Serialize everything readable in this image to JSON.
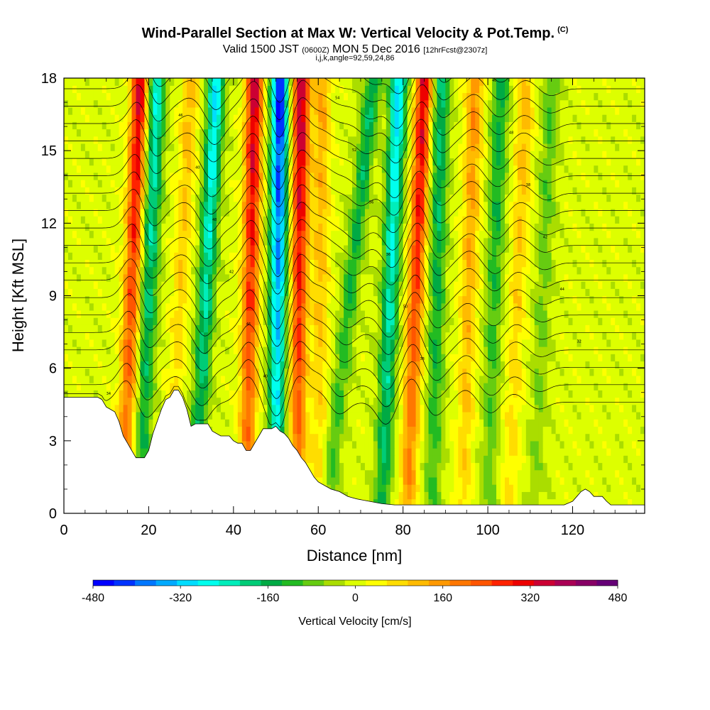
{
  "header": {
    "title": "Wind-Parallel Section at Max W: Vertical Velocity & Pot.Temp.",
    "copyright": "(C)",
    "valid_main": "Valid 1500 JST",
    "valid_utc": "(0600Z)",
    "valid_date": "MON 5 Dec 2016",
    "forecast": "[12hrFcst@2307z]",
    "params": "i,j,k,angle=92,59,24,86"
  },
  "colorbar": {
    "label": "Vertical Velocity [cm/s]",
    "ticks": [
      "-480",
      "-320",
      "-160",
      "0",
      "160",
      "320",
      "480"
    ],
    "colors": [
      "#0000ff",
      "#0033ff",
      "#0077ff",
      "#00aaff",
      "#00ddff",
      "#00ffee",
      "#00eebb",
      "#00cc77",
      "#00aa44",
      "#22bb22",
      "#66cc11",
      "#aadd00",
      "#ddff00",
      "#ffff00",
      "#ffdd00",
      "#ffbb00",
      "#ff9900",
      "#ff7700",
      "#ff5500",
      "#ff2200",
      "#ee0000",
      "#cc0033",
      "#aa0055",
      "#880066",
      "#660077"
    ]
  },
  "chart_data": {
    "type": "heatmap",
    "title": "Wind-Parallel Section at Max W: Vertical Velocity & Pot.Temp.",
    "xlabel": "Distance [nm]",
    "ylabel": "Height [Kft MSL]",
    "xlim": [
      0,
      137
    ],
    "ylim": [
      0,
      18
    ],
    "x_ticks": [
      "0",
      "20",
      "40",
      "60",
      "80",
      "100",
      "120"
    ],
    "y_ticks": [
      "0",
      "3",
      "6",
      "9",
      "12",
      "15",
      "18"
    ],
    "value_range": [
      -480,
      480
    ],
    "wave_bands": [
      {
        "x_top": 18,
        "x_bottom": 14,
        "w": 340
      },
      {
        "x_top": 22,
        "x_bottom": 18,
        "w": -260
      },
      {
        "x_top": 30,
        "x_bottom": 25,
        "w": 120
      },
      {
        "x_top": 36,
        "x_bottom": 31,
        "w": -300
      },
      {
        "x_top": 45,
        "x_bottom": 43,
        "w": 360
      },
      {
        "x_top": 51,
        "x_bottom": 50,
        "w": -470
      },
      {
        "x_top": 56,
        "x_bottom": 55,
        "w": 380
      },
      {
        "x_top": 61,
        "x_bottom": 60,
        "w": 140
      },
      {
        "x_top": 73,
        "x_bottom": 62,
        "w": -180
      },
      {
        "x_top": 79,
        "x_bottom": 75,
        "w": -320
      },
      {
        "x_top": 85,
        "x_bottom": 81,
        "w": 340
      },
      {
        "x_top": 89,
        "x_bottom": 87,
        "w": -200
      },
      {
        "x_top": 97,
        "x_bottom": 94,
        "w": 170
      },
      {
        "x_top": 103,
        "x_bottom": 100,
        "w": -160
      },
      {
        "x_top": 109,
        "x_bottom": 105,
        "w": 120
      },
      {
        "x_top": 115,
        "x_bottom": 111,
        "w": -100
      }
    ],
    "terrain": [
      [
        0,
        4.8
      ],
      [
        8,
        4.8
      ],
      [
        9,
        4.7
      ],
      [
        10,
        4.4
      ],
      [
        11,
        4.3
      ],
      [
        12,
        4.2
      ],
      [
        13,
        3.8
      ],
      [
        14,
        3.2
      ],
      [
        15,
        2.9
      ],
      [
        16,
        2.6
      ],
      [
        17,
        2.3
      ],
      [
        19,
        2.3
      ],
      [
        20,
        2.6
      ],
      [
        21,
        3.3
      ],
      [
        22,
        3.8
      ],
      [
        23,
        4.3
      ],
      [
        24,
        4.7
      ],
      [
        25,
        4.8
      ],
      [
        26,
        5.1
      ],
      [
        27,
        5.1
      ],
      [
        28,
        4.8
      ],
      [
        29,
        4.3
      ],
      [
        30,
        3.6
      ],
      [
        31,
        3.7
      ],
      [
        34,
        3.7
      ],
      [
        35,
        3.4
      ],
      [
        37,
        3.2
      ],
      [
        39,
        3.2
      ],
      [
        40,
        3.0
      ],
      [
        41,
        2.9
      ],
      [
        42,
        2.9
      ],
      [
        43,
        2.6
      ],
      [
        44,
        2.6
      ],
      [
        45,
        2.9
      ],
      [
        46,
        3.2
      ],
      [
        47,
        3.5
      ],
      [
        49,
        3.5
      ],
      [
        50,
        3.6
      ],
      [
        51,
        3.4
      ],
      [
        52,
        3.3
      ],
      [
        53,
        3.1
      ],
      [
        54,
        2.8
      ],
      [
        55,
        2.6
      ],
      [
        56,
        2.3
      ],
      [
        57,
        2.1
      ],
      [
        58,
        1.8
      ],
      [
        59,
        1.5
      ],
      [
        60,
        1.3
      ],
      [
        61,
        1.2
      ],
      [
        63,
        1.0
      ],
      [
        65,
        0.9
      ],
      [
        67,
        0.7
      ],
      [
        69,
        0.6
      ],
      [
        72,
        0.5
      ],
      [
        75,
        0.4
      ],
      [
        78,
        0.35
      ],
      [
        81,
        0.35
      ],
      [
        84,
        0.35
      ],
      [
        90,
        0.35
      ],
      [
        100,
        0.35
      ],
      [
        110,
        0.35
      ],
      [
        118,
        0.35
      ],
      [
        120,
        0.5
      ],
      [
        121,
        0.7
      ],
      [
        122,
        0.9
      ],
      [
        123,
        1.0
      ],
      [
        124,
        0.9
      ],
      [
        125,
        0.7
      ],
      [
        127,
        0.7
      ],
      [
        128,
        0.5
      ],
      [
        129,
        0.35
      ],
      [
        137,
        0.35
      ]
    ],
    "theta_contours": {
      "count": 20,
      "labels": [
        "34",
        "40",
        "38",
        "32",
        "46",
        "50",
        "44",
        "42",
        "36",
        "42",
        "48",
        "56",
        "38",
        "40",
        "52",
        "48",
        "46",
        "54",
        "40",
        "36"
      ]
    }
  }
}
